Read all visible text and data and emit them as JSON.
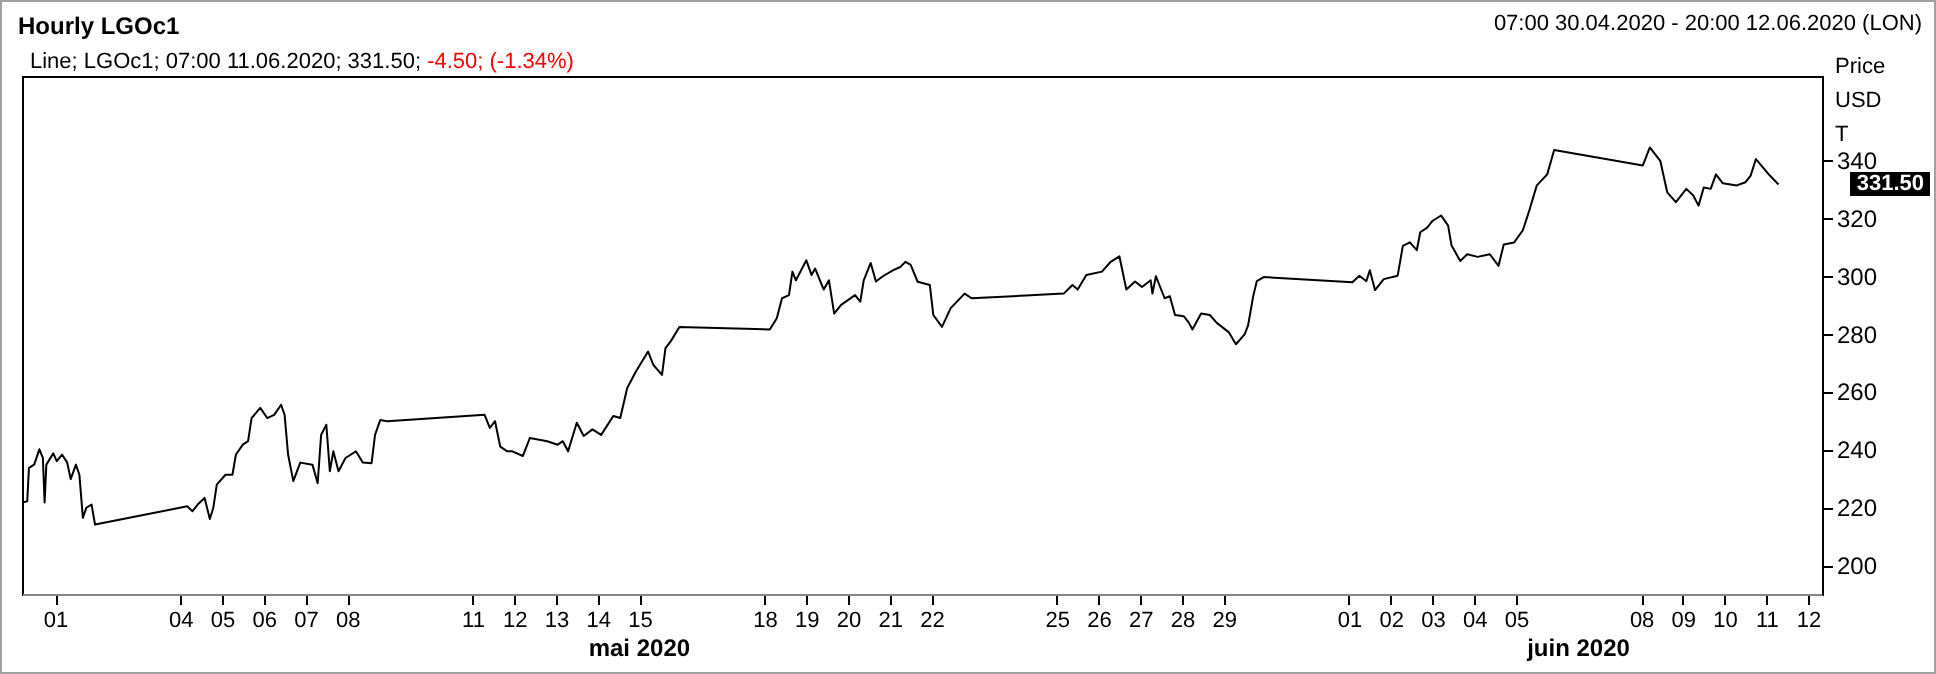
{
  "chart_data": {
    "type": "line",
    "title": "Hourly LGOc1",
    "subtitle": "07:00 30.04.2020 - 20:00 12.06.2020 (LON)",
    "ylabel": "Price\nUSD\nT",
    "annotations": [
      "Line; LGOc1; 07:00 11.06.2020; 331.50;",
      "-4.50; (-1.34%)",
      "mai 2020",
      "juin 2020",
      "331.50"
    ],
    "xlim": [
      "2020-04-30T05:00",
      "2020-06-12T08:00"
    ],
    "ylim": [
      190,
      369
    ],
    "yticks": [
      200,
      220,
      240,
      260,
      280,
      300,
      320,
      340
    ],
    "xticks": [
      {
        "value": "2020-05-01",
        "label": "01"
      },
      {
        "value": "2020-05-04",
        "label": "04"
      },
      {
        "value": "2020-05-05",
        "label": "05"
      },
      {
        "value": "2020-05-06",
        "label": "06"
      },
      {
        "value": "2020-05-07",
        "label": "07"
      },
      {
        "value": "2020-05-08",
        "label": "08"
      },
      {
        "value": "2020-05-11",
        "label": "11"
      },
      {
        "value": "2020-05-12",
        "label": "12"
      },
      {
        "value": "2020-05-13",
        "label": "13"
      },
      {
        "value": "2020-05-14",
        "label": "14"
      },
      {
        "value": "2020-05-15",
        "label": "15"
      },
      {
        "value": "2020-05-18",
        "label": "18"
      },
      {
        "value": "2020-05-19",
        "label": "19"
      },
      {
        "value": "2020-05-20",
        "label": "20"
      },
      {
        "value": "2020-05-21",
        "label": "21"
      },
      {
        "value": "2020-05-22",
        "label": "22"
      },
      {
        "value": "2020-05-25",
        "label": "25"
      },
      {
        "value": "2020-05-26",
        "label": "26"
      },
      {
        "value": "2020-05-27",
        "label": "27"
      },
      {
        "value": "2020-05-28",
        "label": "28"
      },
      {
        "value": "2020-05-29",
        "label": "29"
      },
      {
        "value": "2020-06-01",
        "label": "01"
      },
      {
        "value": "2020-06-02",
        "label": "02"
      },
      {
        "value": "2020-06-03",
        "label": "03"
      },
      {
        "value": "2020-06-04",
        "label": "04"
      },
      {
        "value": "2020-06-05",
        "label": "05"
      },
      {
        "value": "2020-06-08",
        "label": "08"
      },
      {
        "value": "2020-06-09",
        "label": "09"
      },
      {
        "value": "2020-06-10",
        "label": "10"
      },
      {
        "value": "2020-06-11",
        "label": "11"
      },
      {
        "value": "2020-06-12",
        "label": "12"
      }
    ],
    "grid": false,
    "marker": "none",
    "line_style": "solid",
    "series": [
      {
        "color": "#000000",
        "x": [
          "2020-04-30T05:00",
          "2020-04-30T08:00",
          "2020-04-30T09:00",
          "2020-04-30T12:00",
          "2020-04-30T15:00",
          "2020-04-30T17:00",
          "2020-04-30T18:00",
          "2020-04-30T19:00",
          "2020-04-30T23:00",
          "2020-05-01T01:00",
          "2020-05-01T04:00",
          "2020-05-01T07:00",
          "2020-05-01T09:00",
          "2020-05-01T12:00",
          "2020-05-01T14:00",
          "2020-05-01T16:00",
          "2020-05-01T18:00",
          "2020-05-01T21:00",
          "2020-05-01T23:00",
          "2020-05-04T04:00",
          "2020-05-04T07:00",
          "2020-05-04T10:00",
          "2020-05-04T14:00",
          "2020-05-04T17:00",
          "2020-05-04T19:00",
          "2020-05-04T21:00",
          "2020-05-05T02:00",
          "2020-05-05T06:00",
          "2020-05-05T08:00",
          "2020-05-05T12:00",
          "2020-05-05T15:00",
          "2020-05-05T17:00",
          "2020-05-05T22:00",
          "2020-05-06T02:00",
          "2020-05-06T06:00",
          "2020-05-06T10:00",
          "2020-05-06T12:00",
          "2020-05-06T14:00",
          "2020-05-06T17:00",
          "2020-05-06T21:00",
          "2020-05-07T04:00",
          "2020-05-07T07:00",
          "2020-05-07T09:00",
          "2020-05-07T12:00",
          "2020-05-07T14:00",
          "2020-05-07T16:00",
          "2020-05-07T19:00",
          "2020-05-07T23:00",
          "2020-05-08T05:00",
          "2020-05-08T09:00",
          "2020-05-08T14:00",
          "2020-05-08T16:00",
          "2020-05-08T19:00",
          "2020-05-08T23:00",
          "2020-05-11T07:00",
          "2020-05-11T10:00",
          "2020-05-11T13:00",
          "2020-05-11T16:00",
          "2020-05-11T20:00",
          "2020-05-11T23:00",
          "2020-05-12T05:00",
          "2020-05-12T09:00",
          "2020-05-12T19:00",
          "2020-05-13T01:00",
          "2020-05-13T04:00",
          "2020-05-13T07:00",
          "2020-05-13T12:00",
          "2020-05-13T16:00",
          "2020-05-13T21:00",
          "2020-05-14T02:00",
          "2020-05-14T09:00",
          "2020-05-14T13:00",
          "2020-05-14T17:00",
          "2020-05-14T22:00",
          "2020-05-15T05:00",
          "2020-05-15T08:00",
          "2020-05-15T13:00",
          "2020-05-15T15:00",
          "2020-05-15T18:00",
          "2020-05-15T23:00",
          "2020-05-18T03:00",
          "2020-05-18T07:00",
          "2020-05-18T10:00",
          "2020-05-18T14:00",
          "2020-05-18T16:00",
          "2020-05-18T18:00",
          "2020-05-19T00:00",
          "2020-05-19T03:00",
          "2020-05-19T05:00",
          "2020-05-19T10:00",
          "2020-05-19T13:00",
          "2020-05-19T16:00",
          "2020-05-19T20:00",
          "2020-05-20T04:00",
          "2020-05-20T07:00",
          "2020-05-20T09:00",
          "2020-05-20T13:00",
          "2020-05-20T16:00",
          "2020-05-20T20:00",
          "2020-05-21T02:00",
          "2020-05-21T06:00",
          "2020-05-21T09:00",
          "2020-05-21T12:00",
          "2020-05-21T16:00",
          "2020-05-21T23:00",
          "2020-05-22T01:00",
          "2020-05-22T06:00",
          "2020-05-22T11:00",
          "2020-05-22T19:00",
          "2020-05-22T23:00",
          "2020-05-25T04:00",
          "2020-05-25T09:00",
          "2020-05-25T12:00",
          "2020-05-25T17:00",
          "2020-05-26T02:00",
          "2020-05-26T07:00",
          "2020-05-26T12:00",
          "2020-05-26T16:00",
          "2020-05-26T21:00",
          "2020-05-27T01:00",
          "2020-05-27T06:00",
          "2020-05-27T07:00",
          "2020-05-27T09:00",
          "2020-05-27T14:00",
          "2020-05-27T17:00",
          "2020-05-27T20:00",
          "2020-05-28T01:00",
          "2020-05-28T04:00",
          "2020-05-28T06:00",
          "2020-05-28T11:00",
          "2020-05-28T16:00",
          "2020-05-28T20:00",
          "2020-05-29T03:00",
          "2020-05-29T07:00",
          "2020-05-29T12:00",
          "2020-05-29T14:00",
          "2020-05-29T17:00",
          "2020-05-29T19:00",
          "2020-05-29T23:00",
          "2020-06-01T02:00",
          "2020-06-01T06:00",
          "2020-06-01T10:00",
          "2020-06-01T12:00",
          "2020-06-01T15:00",
          "2020-06-01T20:00",
          "2020-06-02T04:00",
          "2020-06-02T07:00",
          "2020-06-02T11:00",
          "2020-06-02T15:00",
          "2020-06-02T17:00",
          "2020-06-02T21:00",
          "2020-06-03T00:00",
          "2020-06-03T05:00",
          "2020-06-03T09:00",
          "2020-06-03T11:00",
          "2020-06-03T16:00",
          "2020-06-03T20:00",
          "2020-06-04T02:00",
          "2020-06-04T09:00",
          "2020-06-04T14:00",
          "2020-06-04T17:00",
          "2020-06-04T23:00",
          "2020-06-05T04:00",
          "2020-06-05T08:00",
          "2020-06-05T12:00",
          "2020-06-05T18:00",
          "2020-06-05T22:00",
          "2020-06-08T01:00",
          "2020-06-08T05:00",
          "2020-06-08T11:00",
          "2020-06-08T15:00",
          "2020-06-08T20:00",
          "2020-06-09T02:00",
          "2020-06-09T06:00",
          "2020-06-09T09:00",
          "2020-06-09T12:00",
          "2020-06-09T16:00",
          "2020-06-09T19:00",
          "2020-06-09T23:00",
          "2020-06-10T07:00",
          "2020-06-10T12:00",
          "2020-06-10T15:00",
          "2020-06-10T18:00",
          "2020-06-10T22:00",
          "2020-06-11T02:00",
          "2020-06-11T07:00"
        ],
        "values": [
          221.6,
          222,
          233.6,
          234.7,
          240,
          237,
          221.6,
          234.7,
          238.6,
          235.9,
          238.2,
          235.4,
          229.7,
          234.7,
          231.2,
          216.3,
          219.8,
          220.9,
          214,
          220.3,
          218.6,
          220.9,
          223.2,
          215.9,
          219.8,
          227.8,
          231.2,
          231.2,
          238.2,
          241.6,
          242.8,
          250.8,
          254.3,
          250.8,
          251.9,
          255.4,
          251.9,
          238.2,
          229,
          235.4,
          234.7,
          228.3,
          245,
          248.5,
          232.4,
          239.3,
          232.4,
          237,
          239.3,
          235.4,
          235.2,
          245,
          250.1,
          249.7,
          251.9,
          247.4,
          249.7,
          240.9,
          239.3,
          239.3,
          237.7,
          243.9,
          242.8,
          241.6,
          242.8,
          239.3,
          249.2,
          244.6,
          246.9,
          245,
          251.5,
          250.8,
          261.2,
          266.9,
          273.8,
          269.2,
          265.7,
          275,
          277.3,
          282.3,
          281.4,
          285.3,
          292.2,
          293.3,
          301.4,
          298.4,
          305.3,
          300.2,
          302.5,
          295.2,
          298.4,
          286.9,
          289.9,
          293.3,
          291,
          298.4,
          304.4,
          298,
          299.8,
          301.9,
          303,
          304.8,
          303.7,
          297.9,
          296.8,
          286.4,
          282.3,
          288.8,
          293.8,
          292.2,
          293.8,
          296.8,
          295.2,
          300.2,
          301.4,
          304.8,
          306.7,
          295.2,
          298,
          296.1,
          298.4,
          293.8,
          299.8,
          292.2,
          292.9,
          286.4,
          286,
          283.7,
          281.4,
          286.9,
          286.4,
          283.7,
          280.4,
          276.3,
          279.7,
          282.8,
          293.1,
          298.1,
          299.5,
          297.7,
          300,
          298.1,
          301.9,
          295,
          298.8,
          300,
          310.3,
          311.5,
          308.8,
          315,
          316.6,
          318.9,
          320.8,
          317.3,
          310.4,
          305.1,
          307.4,
          306.5,
          307.4,
          303.4,
          310.8,
          311.5,
          315.7,
          323.1,
          331.2,
          335,
          343.4,
          338.1,
          344.3,
          339.7,
          328.8,
          325.4,
          330,
          327.7,
          324.2,
          330.5,
          330,
          335,
          331.9,
          331.2,
          332.3,
          334.6,
          340.3,
          337.4,
          334.6,
          331.5
        ]
      }
    ]
  }
}
